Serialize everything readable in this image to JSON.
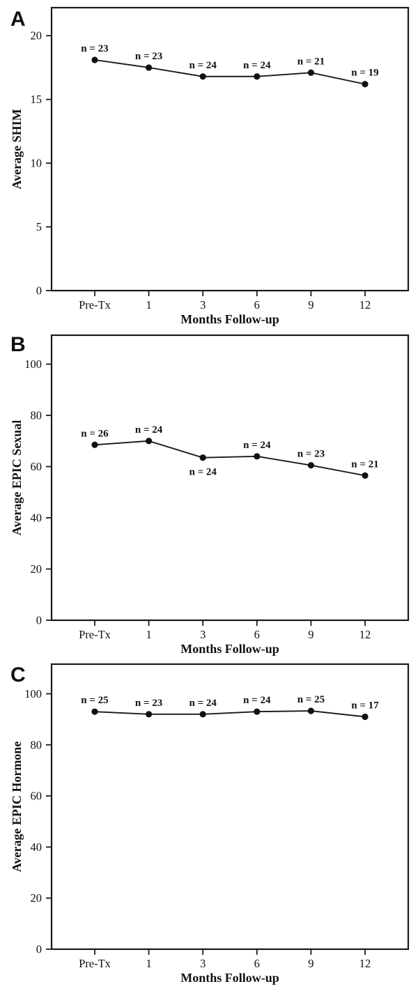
{
  "figure": {
    "background": "#ffffff",
    "line_color": "#1a1a1a",
    "marker_color": "#111111",
    "panels": [
      {
        "label": "A",
        "y_axis_title": "Average SHIM",
        "x_axis_title": "Months Follow-up"
      },
      {
        "label": "B",
        "y_axis_title": "Average EPIC Sexual",
        "x_axis_title": "Months Follow-up"
      },
      {
        "label": "C",
        "y_axis_title": "Average EPIC Hormone",
        "x_axis_title": "Months Follow-up"
      }
    ]
  },
  "chart_data": [
    {
      "type": "line",
      "panel": "A",
      "title": "",
      "xlabel": "Months Follow-up",
      "ylabel": "Average SHIM",
      "categories": [
        "Pre-Tx",
        "1",
        "3",
        "6",
        "9",
        "12"
      ],
      "values": [
        18.1,
        17.5,
        16.8,
        16.8,
        17.1,
        16.2
      ],
      "point_labels": [
        "n = 23",
        "n = 23",
        "n = 24",
        "n = 24",
        "n = 21",
        "n = 19"
      ],
      "label_sides": [
        "above",
        "above",
        "above",
        "above",
        "above",
        "above"
      ],
      "yticks": [
        0,
        5,
        10,
        15,
        20
      ],
      "ylim": [
        0,
        22.2
      ],
      "grid": false,
      "legend": "none",
      "marker": "circle"
    },
    {
      "type": "line",
      "panel": "B",
      "title": "",
      "xlabel": "Months Follow-up",
      "ylabel": "Average EPIC Sexual",
      "categories": [
        "Pre-Tx",
        "1",
        "3",
        "6",
        "9",
        "12"
      ],
      "values": [
        68.5,
        70,
        63.5,
        64,
        60.5,
        56.5
      ],
      "point_labels": [
        "n = 26",
        "n = 24",
        "n = 24",
        "n = 24",
        "n = 23",
        "n = 21"
      ],
      "label_sides": [
        "above",
        "above",
        "below",
        "above",
        "above",
        "above"
      ],
      "yticks": [
        0,
        20,
        40,
        60,
        80,
        100
      ],
      "ylim": [
        0,
        111.3
      ],
      "grid": false,
      "legend": "none",
      "marker": "circle"
    },
    {
      "type": "line",
      "panel": "C",
      "title": "",
      "xlabel": "Months Follow-up",
      "ylabel": "Average EPIC Hormone",
      "categories": [
        "Pre-Tx",
        "1",
        "3",
        "6",
        "9",
        "12"
      ],
      "values": [
        93,
        92,
        92,
        93,
        93.3,
        91
      ],
      "point_labels": [
        "n = 25",
        "n = 23",
        "n = 24",
        "n = 24",
        "n = 25",
        "n = 17"
      ],
      "label_sides": [
        "above",
        "above",
        "above",
        "above",
        "above",
        "above"
      ],
      "yticks": [
        0,
        20,
        40,
        60,
        80,
        100
      ],
      "ylim": [
        0,
        111.6
      ],
      "grid": false,
      "legend": "none",
      "marker": "circle"
    }
  ]
}
